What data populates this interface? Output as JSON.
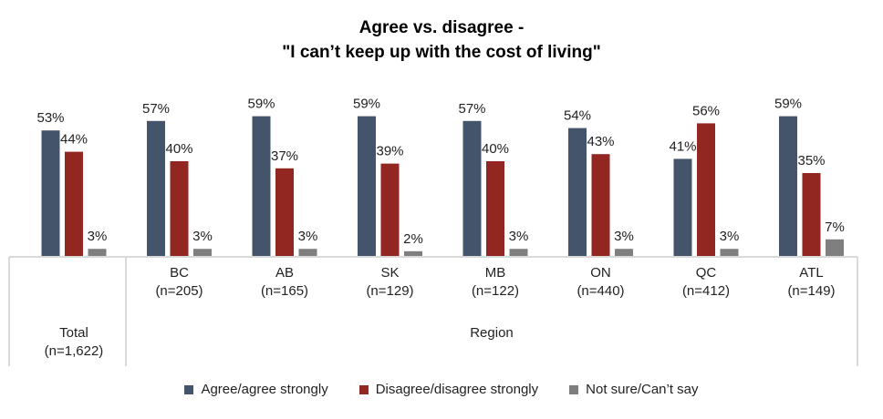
{
  "chart_data": {
    "type": "bar",
    "title_line1": "Agree vs. disagree -",
    "title_line2": "\"I can’t keep up with the cost of living\"",
    "categories": [
      "Total\n(n=1,622)",
      "BC\n(n=205)",
      "AB\n(n=165)",
      "SK\n(n=129)",
      "MB\n(n=122)",
      "ON\n(n=440)",
      "QC\n(n=412)",
      "ATL\n(n=149)"
    ],
    "category_names": [
      "Total",
      "BC",
      "AB",
      "SK",
      "MB",
      "ON",
      "QC",
      "ATL"
    ],
    "category_n": [
      "(n=1,622)",
      "(n=205)",
      "(n=165)",
      "(n=129)",
      "(n=122)",
      "(n=440)",
      "(n=412)",
      "(n=149)"
    ],
    "group_label": "Region",
    "series": [
      {
        "name": "Agree/agree strongly",
        "color": "#44546A",
        "values": [
          53,
          57,
          59,
          59,
          57,
          54,
          41,
          59
        ]
      },
      {
        "name": "Disagree/disagree strongly",
        "color": "#922722",
        "values": [
          44,
          40,
          37,
          39,
          40,
          43,
          56,
          35
        ]
      },
      {
        "name": "Not sure/Can’t say",
        "color": "#7F7F7F",
        "values": [
          3,
          3,
          3,
          2,
          3,
          3,
          3,
          7
        ]
      }
    ],
    "value_suffix": "%",
    "ylim": [
      0,
      65
    ],
    "grid": false,
    "legend_position": "bottom"
  }
}
